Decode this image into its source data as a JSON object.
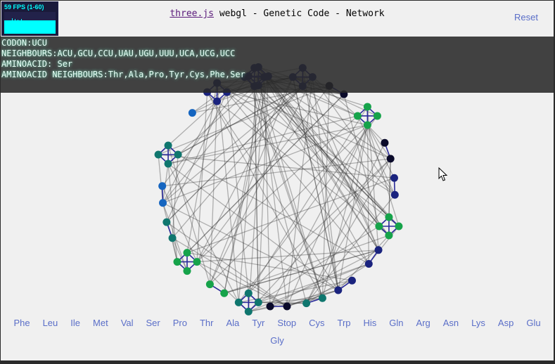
{
  "header": {
    "title_link": "three.js",
    "title_rest": "webgl - Genetic Code - Network",
    "reset_label": "Reset"
  },
  "stats": {
    "fps_label": "59 FPS (1-60)",
    "graph_color": "#00ffff"
  },
  "info": {
    "codon_label": "CODON:",
    "codon": "UCU",
    "neighbours_label": "NEIGHBOURS:",
    "neighbours": "ACU,GCU,CCU,UAU,UGU,UUU,UCA,UCG,UCC",
    "aminoacid_label": "AMINOACID: ",
    "aminoacid": "Ser",
    "aminoacid_neighbours_label": "AMINOACID NEIGHBOURS:",
    "aminoacid_neighbours": "Thr,Ala,Pro,Tyr,Cys,Phe,Ser"
  },
  "legend": {
    "aminoacids": [
      "Phe",
      "Leu",
      "Ile",
      "Met",
      "Val",
      "Ser",
      "Pro",
      "Thr",
      "Ala",
      "Tyr",
      "Stop",
      "Cys",
      "Trp",
      "His",
      "Gln",
      "Arg",
      "Asn",
      "Lys",
      "Asp",
      "Glu",
      "Gly"
    ]
  },
  "colors": {
    "link": "#5a6ec8",
    "node_dark": "#0a0a2a",
    "node_navy": "#1a237e",
    "node_blue": "#1565c0",
    "node_green": "#16a34a",
    "node_teal": "#0f766e",
    "edge": "#303030"
  }
}
